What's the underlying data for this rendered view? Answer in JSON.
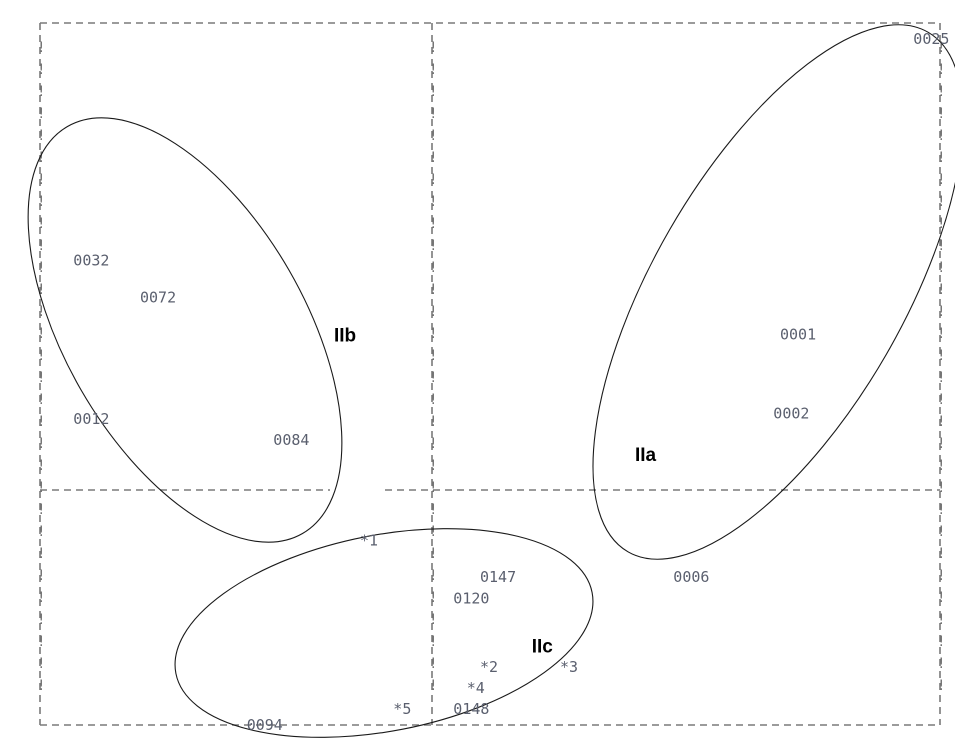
{
  "chart_data": {
    "type": "scatter",
    "axis_style": "dashed-ascii-frame",
    "points": [
      {
        "label": "0032",
        "x": 0.5,
        "y": 8.8
      },
      {
        "label": "0072",
        "x": 1.5,
        "y": 8.1
      },
      {
        "label": "0012",
        "x": 0.5,
        "y": 5.8
      },
      {
        "label": "0084",
        "x": 3.5,
        "y": 5.4
      },
      {
        "label": "*1",
        "x": 4.8,
        "y": 3.5
      },
      {
        "label": "0025",
        "x": 13.1,
        "y": 13.0
      },
      {
        "label": "0001",
        "x": 11.1,
        "y": 7.4
      },
      {
        "label": "0002",
        "x": 11.0,
        "y": 5.9
      },
      {
        "label": "0006",
        "x": 9.5,
        "y": 2.8
      },
      {
        "label": "0147",
        "x": 6.6,
        "y": 2.8
      },
      {
        "label": "0120",
        "x": 6.2,
        "y": 2.4
      },
      {
        "label": "*2",
        "x": 6.6,
        "y": 1.1
      },
      {
        "label": "*3",
        "x": 7.8,
        "y": 1.1
      },
      {
        "label": "*4",
        "x": 6.4,
        "y": 0.7
      },
      {
        "label": "*5",
        "x": 5.3,
        "y": 0.3
      },
      {
        "label": "0148",
        "x": 6.2,
        "y": 0.3
      },
      {
        "label": "0094",
        "x": 3.1,
        "y": 0.0
      }
    ],
    "groups": [
      {
        "label": "IIb",
        "members": [
          "0032",
          "0072",
          "0012",
          "0084",
          "*1"
        ]
      },
      {
        "label": "IIa",
        "members": [
          "0025",
          "0001",
          "0002",
          "0006"
        ]
      },
      {
        "label": "IIc",
        "members": [
          "0147",
          "0120",
          "*2",
          "*3",
          "*4",
          "*5",
          "0148",
          "0094"
        ]
      }
    ],
    "grid": false
  }
}
